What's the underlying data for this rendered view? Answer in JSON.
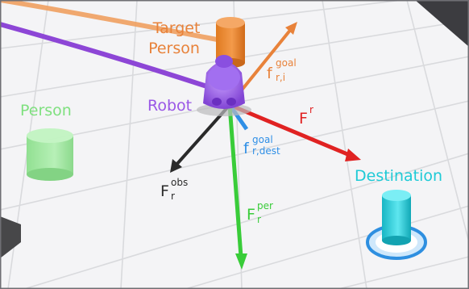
{
  "labels": {
    "target_line1": "Target",
    "target_line2": "Person",
    "person": "Person",
    "robot": "Robot",
    "destination": "Destination"
  },
  "forces": {
    "goal_i": {
      "base": "f",
      "sub": "r,i",
      "sup": "goal"
    },
    "resultant": {
      "base": "F",
      "sup": "r"
    },
    "goal_dest": {
      "base": "f",
      "sub": "r,dest",
      "sup": "goal"
    },
    "obstacle": {
      "base": "F",
      "sub": "r",
      "sup": "obs"
    },
    "person": {
      "base": "F",
      "sub": "r",
      "sup": "per"
    }
  },
  "colors": {
    "target_person": "#e8823a",
    "person": "#7fe07f",
    "robot": "#9a57e6",
    "resultant": "#e02222",
    "goal_dest": "#2f8fe6",
    "obstacle": "#2a2a2a",
    "person_force": "#39cc39",
    "destination": "#1ecad6",
    "path_orange": "#f0a060",
    "path_purple": "#8d46d6"
  }
}
